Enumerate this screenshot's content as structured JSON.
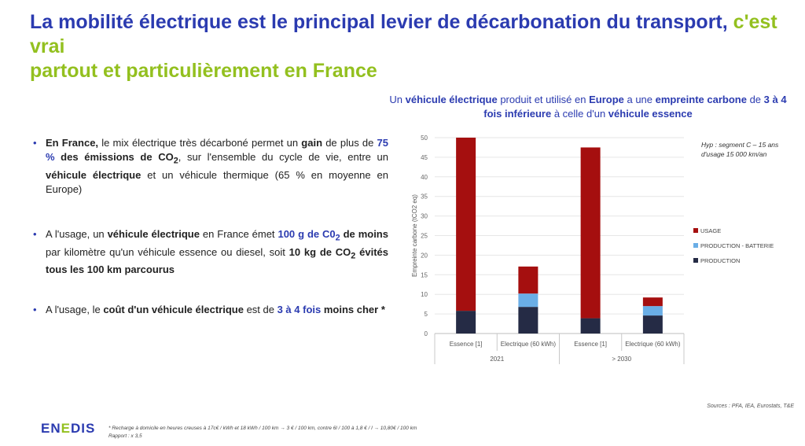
{
  "title": {
    "part1": "La mobilité électrique est le principal levier de décarbonation du transport,",
    "part2": " c'est vrai",
    "part3": "partout et particulièrement en France"
  },
  "bullets": {
    "b1": {
      "s1": "En France,",
      "s2": " le mix électrique très décarboné permet un ",
      "s3": "gain",
      "s4": " de plus de ",
      "s5": "75 %",
      "s6": " des émissions de CO",
      "s6sub": "2",
      "s7": ", sur l'ensemble du cycle de vie, entre un ",
      "s8": "véhicule électrique",
      "s9": " et un véhicule thermique (65 % en moyenne en Europe)"
    },
    "b2": {
      "s1": "A l'usage, un ",
      "s2": "véhicule électrique",
      "s3": " en France émet ",
      "s4": "100 g de C0",
      "s4sub": "2",
      "s5": " de moins",
      "s6": " par kilomètre qu'un véhicule essence ou diesel, soit ",
      "s7": "10 kg de CO",
      "s7sub": "2",
      "s8": " évités tous les 100 km parcourus"
    },
    "b3": {
      "s1": "A l'usage, le ",
      "s2": "coût d'un véhicule électrique",
      "s3": " est de ",
      "s4": "3 à 4 fois",
      "s5": " moins cher *"
    }
  },
  "caption": {
    "c1": "Un ",
    "c2": "véhicule électrique",
    "c3": " produit et utilisé en ",
    "c4": "Europe",
    "c5": " a une ",
    "c6": "empreinte carbone",
    "c7": " de ",
    "c8": "3 à 4 fois inférieure",
    "c9": " à celle d'un ",
    "c10": "véhicule essence"
  },
  "hyp": "Hyp : segment C – 15 ans d'usage 15 000 km/an",
  "sources": "Sources : PFA, IEA, Eurostats, T&E",
  "footnote": {
    "line1": "* Recharge à domicile en heures creuses à 17c€ / kWh et 18 kWh / 100 km → 3 € / 100 km, contre 6l / 100 à 1,8 € / l → 10,80€ / 100 km",
    "line2": "Rapport : x 3,5"
  },
  "logo": {
    "part1": "EN",
    "part2": "E",
    "part3": "DIS"
  },
  "chart_data": {
    "type": "bar",
    "stacked": true,
    "ylabel": "Empreinte carbone (tCO2 eq)",
    "ylim": [
      0,
      50
    ],
    "yticks": [
      0,
      5,
      10,
      15,
      20,
      25,
      30,
      35,
      40,
      45,
      50
    ],
    "categories": [
      "Essence [1]",
      "Electrique (60 kWh)",
      "Essence [1]",
      "Electrique (60 kWh)"
    ],
    "groups": [
      {
        "label": "2021",
        "categories": [
          0,
          1
        ]
      },
      {
        "label": "> 2030",
        "categories": [
          2,
          3
        ]
      }
    ],
    "series": [
      {
        "name": "PRODUCTION",
        "color": "#252b45",
        "values": [
          5.8,
          6.8,
          3.9,
          4.6
        ]
      },
      {
        "name": "PRODUCTION - BATTERIE",
        "color": "#6aaee6",
        "values": [
          0,
          3.4,
          0,
          2.4
        ]
      },
      {
        "name": "USAGE",
        "color": "#a50f0f",
        "values": [
          44.2,
          6.9,
          43.6,
          2.2
        ]
      }
    ],
    "legend_order": [
      "USAGE",
      "PRODUCTION - BATTERIE",
      "PRODUCTION"
    ],
    "legend_position": "right",
    "grid": true
  }
}
